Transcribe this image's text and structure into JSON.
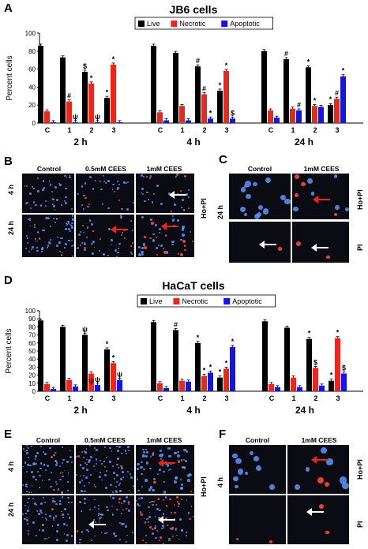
{
  "panel_labels": {
    "a": "A",
    "b": "B",
    "c": "C",
    "d": "D",
    "e": "E",
    "f": "F"
  },
  "colors": {
    "live": "#000000",
    "necrotic": "#e8281e",
    "apoptotic": "#1414e6",
    "sig": "#000000"
  },
  "chart_data": [
    {
      "type": "bar",
      "title": "JB6 cells",
      "ylabel": "Percent cells",
      "ylim": [
        0,
        100
      ],
      "yticks": [
        0,
        20,
        40,
        60,
        80,
        100
      ],
      "legend": [
        "Live",
        "Necrotic",
        "Apoptotic"
      ],
      "groups": [
        {
          "label": "2 h",
          "categories": [
            "C",
            "1",
            "2",
            "3"
          ],
          "live": [
            86,
            73,
            57,
            28
          ],
          "necrotic": [
            13,
            24,
            44,
            65
          ],
          "apoptotic": [
            1,
            1,
            1,
            1
          ],
          "marks": {
            "live": [
              "",
              "",
              "$",
              "*"
            ],
            "necrotic": [
              "",
              "#",
              "*",
              "*"
            ],
            "apoptotic": [
              "",
              "ψ",
              "ψ",
              ""
            ]
          }
        },
        {
          "label": "4 h",
          "categories": [
            "C",
            "1",
            "2",
            "3"
          ],
          "live": [
            86,
            78,
            63,
            36
          ],
          "necrotic": [
            12,
            19,
            32,
            58
          ],
          "apoptotic": [
            3,
            3,
            5,
            5
          ],
          "marks": {
            "live": [
              "",
              "",
              "#",
              "*"
            ],
            "necrotic": [
              "",
              "",
              "#",
              "*"
            ],
            "apoptotic": [
              "",
              "",
              "*",
              "$"
            ]
          }
        },
        {
          "label": "24 h",
          "categories": [
            "C",
            "1",
            "2",
            "3"
          ],
          "live": [
            80,
            71,
            62,
            20
          ],
          "necrotic": [
            14,
            16,
            19,
            27
          ],
          "apoptotic": [
            6,
            14,
            18,
            52
          ],
          "marks": {
            "live": [
              "",
              "#",
              "*",
              "*"
            ],
            "necrotic": [
              "",
              "",
              "*",
              "#"
            ],
            "apoptotic": [
              "",
              "#",
              "",
              "*"
            ]
          }
        }
      ]
    },
    {
      "type": "bar",
      "title": "HaCaT cells",
      "ylabel": "Percent cells",
      "ylim": [
        0,
        100
      ],
      "yticks": [
        0,
        10,
        20,
        30,
        40,
        50,
        60,
        70,
        80,
        90,
        100
      ],
      "legend": [
        "Live",
        "Necrotic",
        "Apoptotic"
      ],
      "groups": [
        {
          "label": "2 h",
          "categories": [
            "C",
            "1",
            "2",
            "3"
          ],
          "live": [
            88,
            80,
            70,
            52
          ],
          "necrotic": [
            9,
            14,
            22,
            35
          ],
          "apoptotic": [
            3,
            6,
            8,
            14
          ],
          "marks": {
            "live": [
              "",
              "",
              "ψ",
              "*"
            ],
            "necrotic": [
              "",
              "",
              "",
              ""
            ],
            "apoptotic": [
              "",
              "",
              "ψ",
              "ψ"
            ]
          },
          "extra_marks": [
            {
              "bar": "necrotic",
              "idx": 2,
              "text": "ψ",
              "pos": "low"
            },
            {
              "bar": "necrotic",
              "idx": 3,
              "text": "*"
            }
          ]
        },
        {
          "label": "4 h",
          "categories": [
            "C",
            "1",
            "2",
            "3"
          ],
          "live": [
            86,
            76,
            60,
            17
          ],
          "necrotic": [
            10,
            13,
            19,
            28
          ],
          "apoptotic": [
            4,
            12,
            23,
            55
          ],
          "marks": {
            "live": [
              "",
              "#",
              "*",
              "*"
            ],
            "necrotic": [
              "",
              "",
              "*",
              "*"
            ],
            "apoptotic": [
              "",
              "",
              "*",
              "*"
            ]
          }
        },
        {
          "label": "24 h",
          "categories": [
            "C",
            "1",
            "2",
            "3"
          ],
          "live": [
            87,
            79,
            65,
            13
          ],
          "necrotic": [
            9,
            17,
            29,
            66
          ],
          "apoptotic": [
            5,
            5,
            7,
            22
          ],
          "marks": {
            "live": [
              "",
              "",
              "*",
              "*"
            ],
            "necrotic": [
              "",
              "",
              "$",
              "*"
            ],
            "apoptotic": [
              "",
              "",
              "",
              "$"
            ]
          }
        }
      ]
    }
  ],
  "microscopy": {
    "b": {
      "cols": [
        "Control",
        "0.5mM CEES",
        "1mM CEES"
      ],
      "rows": [
        "4 h",
        "24 h"
      ],
      "side": "Ho+PI"
    },
    "c": {
      "cols": [
        "Control",
        "1mM CEES"
      ],
      "row": "24 h",
      "sides": [
        "Ho+PI",
        "PI"
      ]
    },
    "e": {
      "cols": [
        "Control",
        "0.5mM CEES",
        "1mM CEES"
      ],
      "rows": [
        "4 h",
        "24 h"
      ],
      "side": "Ho+PI"
    },
    "f": {
      "cols": [
        "Control",
        "1mM CEES"
      ],
      "row": "4 h",
      "sides": [
        "Ho+PI",
        "PI"
      ]
    }
  }
}
